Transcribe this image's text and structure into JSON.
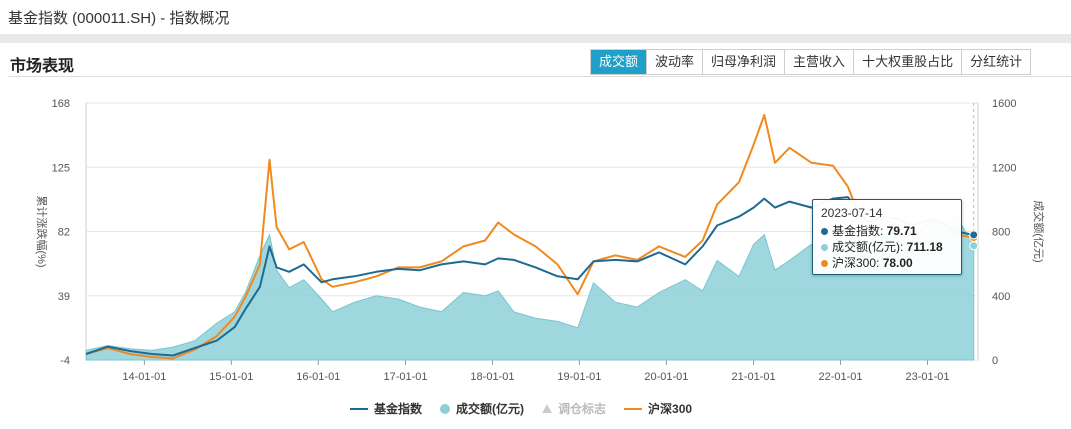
{
  "header": {
    "title": "基金指数 (000011.SH) - 指数概况"
  },
  "section": {
    "title": "市场表现"
  },
  "tabs": [
    {
      "label": "成交额",
      "active": true
    },
    {
      "label": "波动率",
      "active": false
    },
    {
      "label": "归母净利润",
      "active": false
    },
    {
      "label": "主营收入",
      "active": false
    },
    {
      "label": "十大权重股占比",
      "active": false
    },
    {
      "label": "分红统计",
      "active": false
    }
  ],
  "tooltip": {
    "date": "2023-07-14",
    "rows": [
      {
        "label": "基金指数: ",
        "value": "79.71",
        "color": "#1e6a93"
      },
      {
        "label": "成交额(亿元): ",
        "value": "711.18",
        "color": "#8ed0d9"
      },
      {
        "label": "沪深300: ",
        "value": "78.00",
        "color": "#f08a1c"
      }
    ]
  },
  "legend": [
    {
      "label": "基金指数",
      "kind": "line",
      "color": "#1e6a93",
      "dim": false
    },
    {
      "label": "成交额(亿元)",
      "kind": "dot",
      "color": "#8ed0d9",
      "dim": false
    },
    {
      "label": "调仓标志",
      "kind": "triangle",
      "color": "#cccccc",
      "dim": true
    },
    {
      "label": "沪深300",
      "kind": "line",
      "color": "#f08a1c",
      "dim": false
    }
  ],
  "colors": {
    "index": "#1e6a93",
    "turnover": "#8ed0d9",
    "hs300": "#f08a1c",
    "axis": "#999999",
    "grid": "#e6e6e6"
  },
  "chart_data": {
    "type": "line",
    "xlim": [
      "2013-05-01",
      "2023-08-01"
    ],
    "x_ticks": [
      "14-01-01",
      "15-01-01",
      "16-01-01",
      "17-01-01",
      "18-01-01",
      "19-01-01",
      "20-01-01",
      "21-01-01",
      "22-01-01",
      "23-01-01"
    ],
    "y_left": {
      "label": "累计涨跌幅(%)",
      "ticks": [
        -4,
        39,
        82,
        125,
        168
      ],
      "lim": [
        -4,
        168
      ]
    },
    "y_right": {
      "label": "成交额(亿元)",
      "ticks": [
        0,
        400,
        800,
        1200,
        1600
      ],
      "lim": [
        0,
        1600
      ]
    },
    "grid": true,
    "series": [
      {
        "name": "基金指数",
        "axis": "left",
        "kind": "line",
        "x": [
          "2013-05-01",
          "2013-08-01",
          "2013-11-01",
          "2014-02-01",
          "2014-05-01",
          "2014-08-01",
          "2014-11-01",
          "2015-01-15",
          "2015-03-01",
          "2015-05-01",
          "2015-06-10",
          "2015-07-10",
          "2015-09-01",
          "2015-11-01",
          "2016-01-15",
          "2016-03-01",
          "2016-06-01",
          "2016-09-01",
          "2016-12-01",
          "2017-03-01",
          "2017-06-01",
          "2017-09-01",
          "2017-12-01",
          "2018-01-25",
          "2018-04-01",
          "2018-07-01",
          "2018-10-01",
          "2018-12-25",
          "2019-03-01",
          "2019-06-01",
          "2019-09-01",
          "2019-12-01",
          "2020-03-20",
          "2020-06-01",
          "2020-08-01",
          "2020-11-01",
          "2021-01-01",
          "2021-02-15",
          "2021-04-01",
          "2021-06-01",
          "2021-09-01",
          "2021-12-01",
          "2022-02-01",
          "2022-04-26",
          "2022-07-01",
          "2022-09-01",
          "2022-11-01",
          "2023-01-15",
          "2023-03-01",
          "2023-05-01",
          "2023-07-14"
        ],
        "y": [
          0,
          5,
          2,
          0,
          -1,
          4,
          9,
          18,
          30,
          45,
          72,
          58,
          55,
          60,
          48,
          50,
          52,
          55,
          57,
          56,
          60,
          62,
          60,
          64,
          63,
          58,
          52,
          50,
          62,
          63,
          62,
          68,
          60,
          72,
          86,
          92,
          98,
          104,
          98,
          102,
          98,
          104,
          105,
          88,
          92,
          90,
          86,
          90,
          88,
          82,
          79.71
        ]
      },
      {
        "name": "沪深300",
        "axis": "left",
        "kind": "line",
        "x": [
          "2013-05-01",
          "2013-08-01",
          "2013-11-01",
          "2014-02-01",
          "2014-05-01",
          "2014-08-01",
          "2014-11-01",
          "2015-01-15",
          "2015-03-01",
          "2015-05-01",
          "2015-06-10",
          "2015-07-10",
          "2015-09-01",
          "2015-11-01",
          "2016-01-15",
          "2016-03-01",
          "2016-06-01",
          "2016-09-01",
          "2016-12-01",
          "2017-03-01",
          "2017-06-01",
          "2017-09-01",
          "2017-12-01",
          "2018-01-25",
          "2018-04-01",
          "2018-07-01",
          "2018-10-01",
          "2018-12-25",
          "2019-03-01",
          "2019-06-01",
          "2019-09-01",
          "2019-12-01",
          "2020-03-20",
          "2020-06-01",
          "2020-08-01",
          "2020-11-01",
          "2021-01-01",
          "2021-02-15",
          "2021-04-01",
          "2021-06-01",
          "2021-09-01",
          "2021-12-01",
          "2022-02-01",
          "2022-04-26",
          "2022-07-01",
          "2022-09-01",
          "2022-11-01",
          "2023-01-15",
          "2023-03-01",
          "2023-05-01",
          "2023-07-14"
        ],
        "y": [
          0,
          4,
          0,
          -2,
          -3,
          3,
          12,
          25,
          38,
          60,
          130,
          85,
          70,
          75,
          50,
          45,
          48,
          52,
          58,
          58,
          62,
          72,
          76,
          88,
          80,
          72,
          60,
          40,
          62,
          66,
          63,
          72,
          65,
          76,
          100,
          115,
          140,
          160,
          128,
          138,
          128,
          126,
          112,
          78,
          90,
          86,
          78,
          88,
          86,
          80,
          78.0
        ]
      },
      {
        "name": "成交额(亿元)",
        "axis": "right",
        "kind": "area",
        "x": [
          "2013-05-01",
          "2013-08-01",
          "2013-11-01",
          "2014-02-01",
          "2014-05-01",
          "2014-08-01",
          "2014-11-01",
          "2015-01-15",
          "2015-03-01",
          "2015-05-01",
          "2015-06-10",
          "2015-07-10",
          "2015-09-01",
          "2015-11-01",
          "2016-01-15",
          "2016-03-01",
          "2016-06-01",
          "2016-09-01",
          "2016-12-01",
          "2017-03-01",
          "2017-06-01",
          "2017-09-01",
          "2017-12-01",
          "2018-01-25",
          "2018-04-01",
          "2018-07-01",
          "2018-10-01",
          "2018-12-25",
          "2019-03-01",
          "2019-06-01",
          "2019-09-01",
          "2019-12-01",
          "2020-03-20",
          "2020-06-01",
          "2020-08-01",
          "2020-11-01",
          "2021-01-01",
          "2021-02-15",
          "2021-04-01",
          "2021-06-01",
          "2021-09-01",
          "2021-12-01",
          "2022-02-01",
          "2022-04-26",
          "2022-07-01",
          "2022-09-01",
          "2022-11-01",
          "2023-01-15",
          "2023-03-01",
          "2023-05-01",
          "2023-07-14"
        ],
        "y": [
          60,
          90,
          70,
          60,
          80,
          120,
          230,
          300,
          420,
          650,
          780,
          560,
          450,
          500,
          380,
          300,
          360,
          400,
          380,
          330,
          300,
          420,
          400,
          430,
          300,
          260,
          240,
          200,
          480,
          360,
          330,
          420,
          500,
          430,
          620,
          520,
          720,
          780,
          560,
          620,
          720,
          680,
          780,
          700,
          820,
          760,
          720,
          900,
          820,
          900,
          711.18
        ]
      }
    ]
  }
}
